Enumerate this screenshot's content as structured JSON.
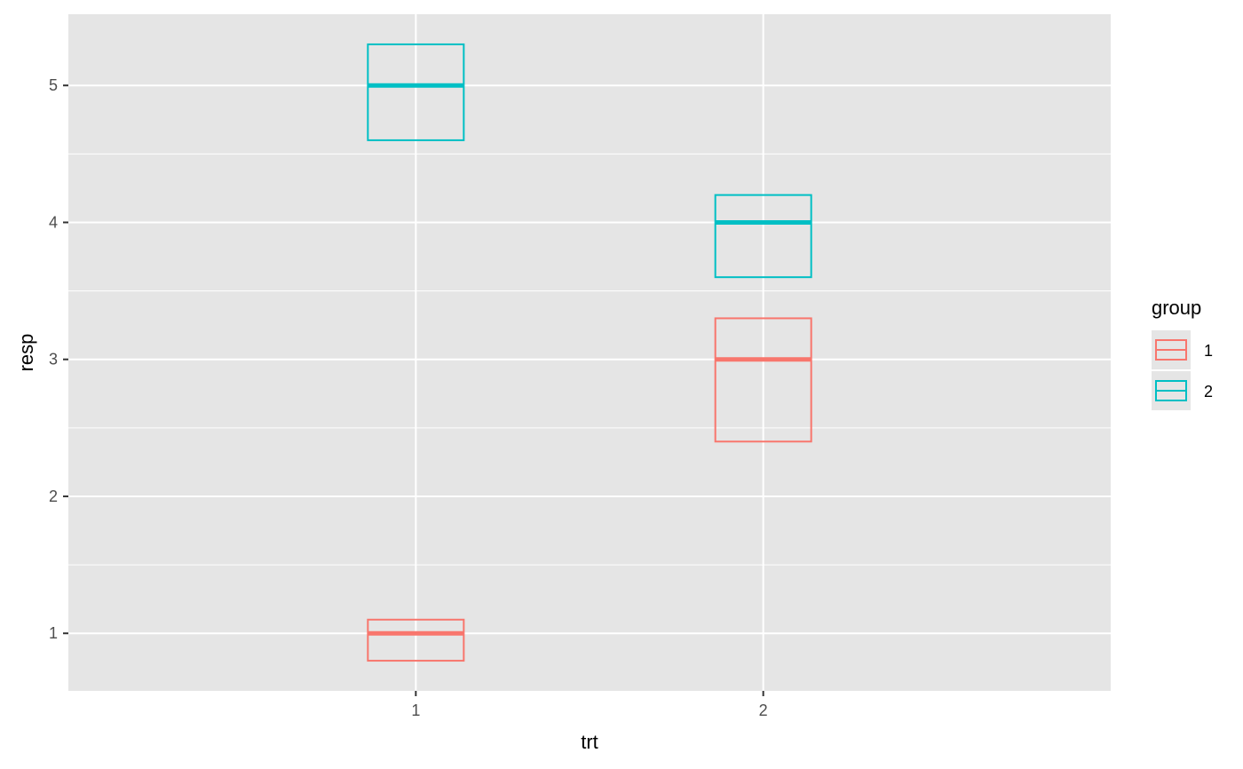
{
  "chart_data": {
    "type": "crossbar",
    "xlabel": "trt",
    "ylabel": "resp",
    "categories": [
      "1",
      "2"
    ],
    "x_ticks": [
      "1",
      "2"
    ],
    "y_ticks": [
      "1",
      "2",
      "3",
      "4",
      "5"
    ],
    "ylim": [
      0.58,
      5.52
    ],
    "grid": true,
    "legend": {
      "title": "group",
      "position": "right",
      "entries": [
        {
          "label": "1",
          "color": "#F8766D"
        },
        {
          "label": "2",
          "color": "#00BFC4"
        }
      ]
    },
    "series": [
      {
        "name": "1",
        "color": "#F8766D",
        "data": [
          {
            "x": "1",
            "y": 1,
            "lower": 0.8,
            "upper": 1.1
          },
          {
            "x": "2",
            "y": 3,
            "lower": 2.4,
            "upper": 3.3
          }
        ]
      },
      {
        "name": "2",
        "color": "#00BFC4",
        "data": [
          {
            "x": "1",
            "y": 5,
            "lower": 4.6,
            "upper": 5.3
          },
          {
            "x": "2",
            "y": 4,
            "lower": 3.6,
            "upper": 4.2
          }
        ]
      }
    ],
    "colors": {
      "panel_background": "#E5E5E5",
      "grid_major": "#FFFFFF",
      "tick": "#333333"
    }
  }
}
